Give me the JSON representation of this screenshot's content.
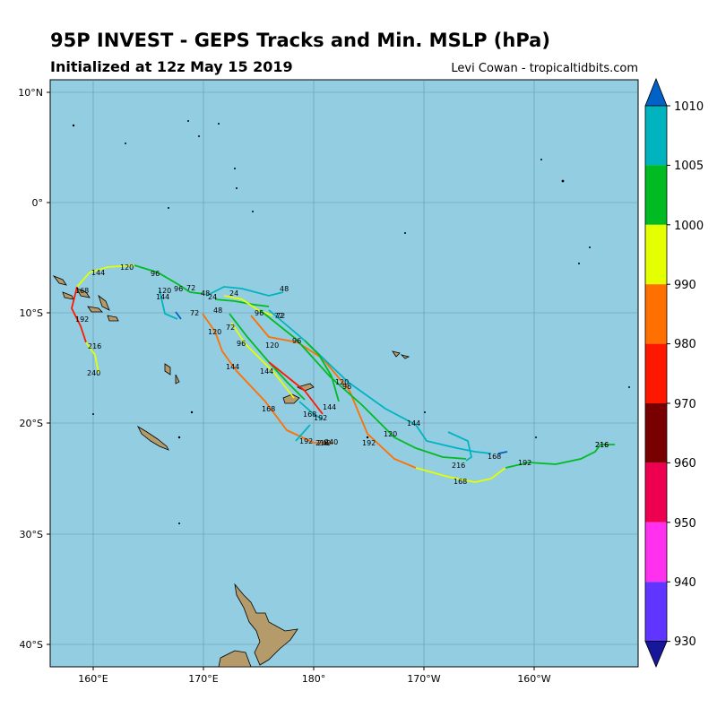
{
  "header": {
    "title": "95P INVEST - GEPS Tracks and Min. MSLP (hPa)",
    "subtitle": "Initialized at 12z May 15 2019",
    "credit": "Levi Cowan - tropicaltidbits.com"
  },
  "map": {
    "lat_labels": [
      "10°N",
      "0°",
      "10°S",
      "20°S",
      "30°S",
      "40°S"
    ],
    "lon_labels": [
      "160°E",
      "170°E",
      "180°",
      "170°W",
      "160°W"
    ],
    "ocean_color": "#93cde1",
    "land_color": "#b59a6a"
  },
  "colorbar": {
    "labels": [
      "1010",
      "1005",
      "1000",
      "990",
      "980",
      "970",
      "960",
      "950",
      "940",
      "930"
    ],
    "colors_top_to_bottom": [
      "#00b4bf",
      "#00bb22",
      "#e4ff00",
      "#ff7000",
      "#ff1800",
      "#780000",
      "#ed0050",
      "#ff30ee",
      "#6035ff"
    ],
    "top_arrow_color": "#0062c6",
    "bottom_arrow_color": "#17179a"
  },
  "tracks": {
    "hour_labels": [
      "120",
      "144",
      "96",
      "72",
      "48",
      "24",
      "168",
      "192",
      "216",
      "240",
      "120",
      "144",
      "96",
      "72",
      "48",
      "24",
      "72",
      "96",
      "120",
      "144",
      "168",
      "192",
      "216",
      "240",
      "72",
      "96",
      "120",
      "144",
      "168",
      "192",
      "216",
      "96",
      "120",
      "144",
      "168",
      "192",
      "216",
      "240",
      "48",
      "72",
      "96",
      "120",
      "144",
      "168",
      "192",
      "216"
    ]
  }
}
